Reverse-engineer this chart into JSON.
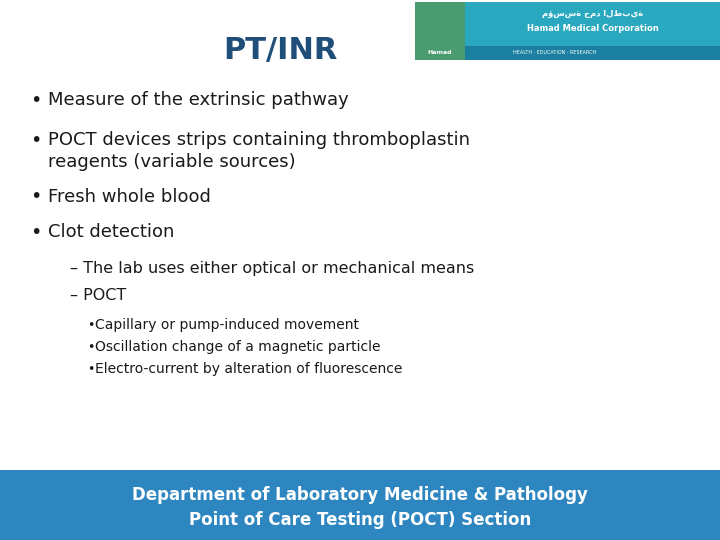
{
  "title": "PT/INR",
  "title_color": "#1F4E79",
  "title_fontsize": 22,
  "bullet1": "Measure of the extrinsic pathway",
  "bullet2a": "POCT devices strips containing thromboplastin",
  "bullet2b": "reagents (variable sources)",
  "bullet3": "Fresh whole blood",
  "bullet4": "Clot detection",
  "sub1": "– The lab uses either optical or mechanical means",
  "sub2": "– POCT",
  "subsub1": "Capillary or pump-induced movement",
  "subsub2": "Oscillation change of a magnetic particle",
  "subsub3": "Electro-current by alteration of fluorescence",
  "footer_line1": "Department of Laboratory Medicine & Pathology",
  "footer_line2": "Point of Care Testing (POCT) Section",
  "footer_bg": "#2E86C1",
  "footer_text_color": "#FFFFFF",
  "bg_color": "#FFFFFF",
  "text_color": "#1a1a1a",
  "bullet_fontsize": 13,
  "sub_fontsize": 11.5,
  "subsub_fontsize": 10,
  "footer_fontsize": 12,
  "logo_bg_teal": "#29A8C0",
  "logo_bg_dark_teal": "#1A7FA0",
  "logo_green": "#5BAD6F",
  "logo_top_strip": "#1F7098"
}
